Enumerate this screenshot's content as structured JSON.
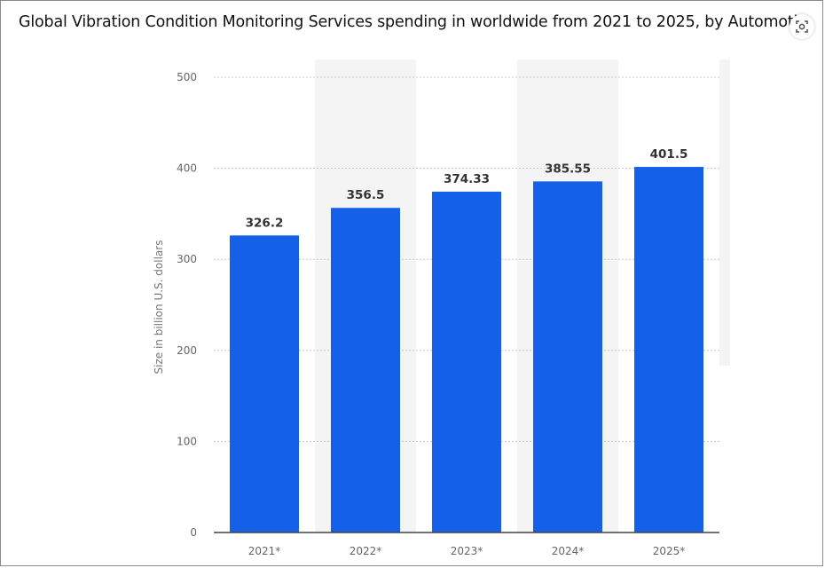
{
  "title": "Global Vibration Condition Monitoring Services spending in worldwide from 2021 to 2025, by Automotive",
  "colors": {
    "bar": "#1560e8",
    "grid": "#c8c8c8",
    "band": "#f4f4f4",
    "axis": "#444444"
  },
  "lens_icon": "visual-search-icon",
  "chart_data": {
    "type": "bar",
    "categories": [
      "2021*",
      "2022*",
      "2023*",
      "2024*",
      "2025*"
    ],
    "values": [
      326.2,
      356.5,
      374.33,
      385.55,
      401.5
    ],
    "data_labels": [
      "326.2",
      "356.5",
      "374.33",
      "385.55",
      "401.5"
    ],
    "title": "Global Vibration Condition Monitoring Services spending in worldwide from 2021 to 2025, by Automotive",
    "xlabel": "",
    "ylabel": "Size in billion U.S. dollars",
    "ylim": [
      0,
      500
    ],
    "yticks": [
      0,
      100,
      200,
      300,
      400,
      500
    ],
    "grid": true,
    "legend": "none"
  }
}
